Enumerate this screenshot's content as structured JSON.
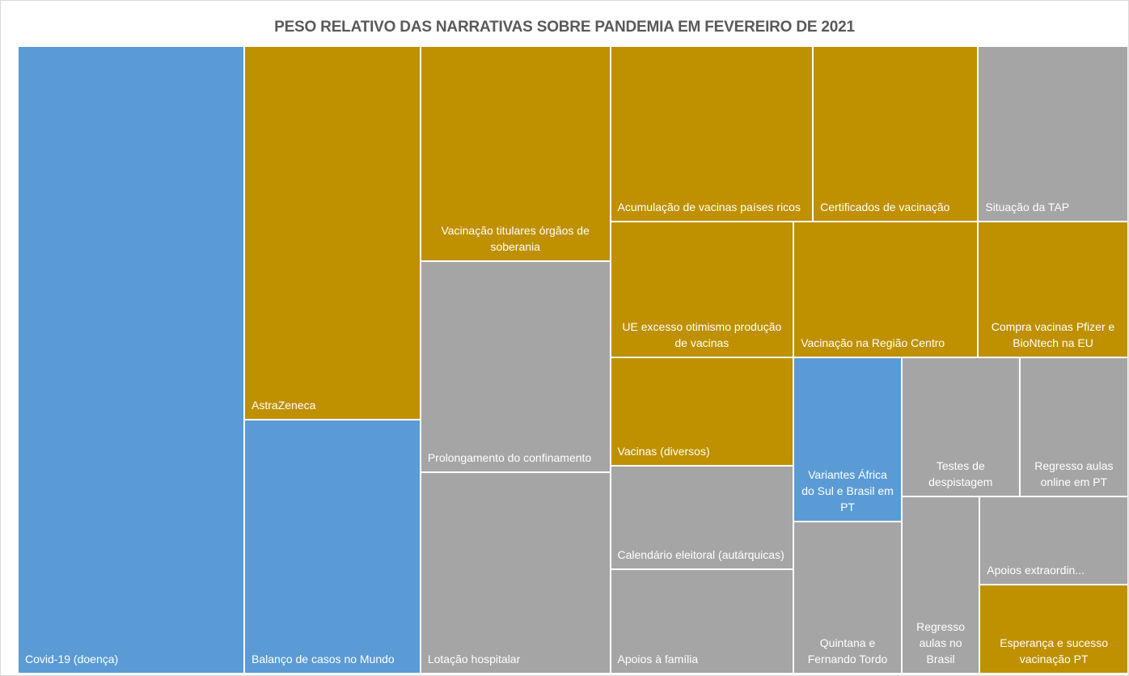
{
  "chart_data": {
    "type": "treemap",
    "title": "PESO RELATIVO DAS NARRATIVAS SOBRE PANDEMIA EM FEVEREIRO DE 2021",
    "categories": [
      "Covid-19 (doença)",
      "AstraZeneca",
      "Balanço de casos no Mundo",
      "Vacinação titulares órgãos de soberania",
      "Prolongamento do confinamento",
      "Lotação hospitalar",
      "Acumulação de vacinas países ricos",
      "Certificados de vacinação",
      "Situação da TAP",
      "UE excesso otimismo produção de vacinas",
      "Vacinas (diversos)",
      "Calendário eleitoral (autárquicas)",
      "Apoios à família",
      "Vacinação na Região Centro",
      "Compra vacinas Pfizer e BioNtech na EU",
      "Variantes África do Sul e Brasil em PT",
      "Quintana e Fernando Tordo",
      "Testes de despistagem",
      "Regresso aulas online em PT",
      "Regresso aulas no Brasil",
      "Apoios extraordin...",
      "Esperança e sucesso vacinação PT"
    ],
    "values": [
      216,
      100,
      68,
      62,
      61,
      58,
      54,
      44,
      40,
      38,
      30,
      29,
      29,
      38,
      31,
      27,
      25,
      25,
      23,
      21,
      20,
      20
    ],
    "colors": [
      "#5b9bd5",
      "#bf9000",
      "#5b9bd5",
      "#bf9000",
      "#a5a5a5",
      "#a5a5a5",
      "#bf9000",
      "#bf9000",
      "#a5a5a5",
      "#bf9000",
      "#bf9000",
      "#a5a5a5",
      "#a5a5a5",
      "#bf9000",
      "#bf9000",
      "#5b9bd5",
      "#a5a5a5",
      "#a5a5a5",
      "#a5a5a5",
      "#a5a5a5",
      "#a5a5a5",
      "#bf9000"
    ]
  }
}
